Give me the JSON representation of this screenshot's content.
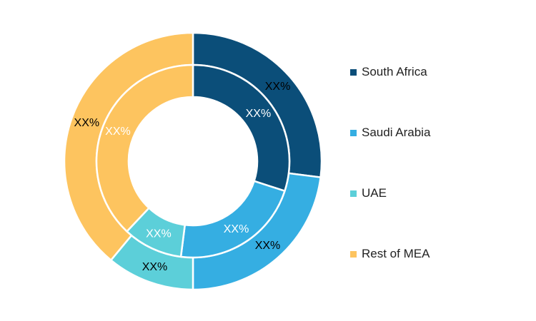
{
  "chart_data": {
    "type": "pie",
    "subtype": "double-donut",
    "legend_position": "right",
    "categories": [
      "South Africa",
      "Saudi Arabia",
      "UAE",
      "Rest of MEA"
    ],
    "colors": [
      "#0b4e79",
      "#35aee2",
      "#5ccfd9",
      "#fdc45f"
    ],
    "series": [
      {
        "ring": "outer",
        "values": [
          27,
          23,
          11,
          39
        ],
        "labels": [
          "XX%",
          "XX%",
          "XX%",
          "XX%"
        ],
        "label_color": "#000000"
      },
      {
        "ring": "inner",
        "values": [
          30,
          22,
          10,
          38
        ],
        "labels": [
          "XX%",
          "XX%",
          "XX%",
          "XX%"
        ],
        "label_color": "#ffffff"
      }
    ]
  }
}
